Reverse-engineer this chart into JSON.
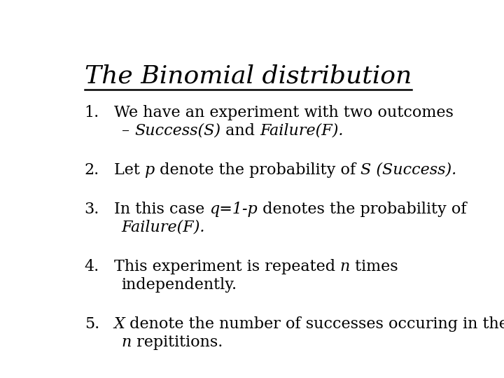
{
  "title": "The Binomial distribution",
  "background_color": "#ffffff",
  "text_color": "#000000",
  "title_fontsize": 26,
  "body_fontsize": 16,
  "items": [
    {
      "number": "1.",
      "lines": [
        [
          {
            "t": "We have an experiment with two outcomes",
            "style": "normal"
          }
        ],
        [
          {
            "t": "– ",
            "style": "normal"
          },
          {
            "t": "Success(S)",
            "style": "italic"
          },
          {
            "t": " and ",
            "style": "normal"
          },
          {
            "t": "Failure(F).",
            "style": "italic"
          }
        ]
      ]
    },
    {
      "number": "2.",
      "lines": [
        [
          {
            "t": "Let ",
            "style": "normal"
          },
          {
            "t": "p",
            "style": "italic"
          },
          {
            "t": " denote the probability of ",
            "style": "normal"
          },
          {
            "t": "S (Success).",
            "style": "italic"
          }
        ]
      ]
    },
    {
      "number": "3.",
      "lines": [
        [
          {
            "t": "In this case ",
            "style": "normal"
          },
          {
            "t": "q=1-p",
            "style": "italic"
          },
          {
            "t": " denotes the probability of",
            "style": "normal"
          }
        ],
        [
          {
            "t": "Failure(F).",
            "style": "italic"
          }
        ]
      ]
    },
    {
      "number": "4.",
      "lines": [
        [
          {
            "t": "This experiment is repeated ",
            "style": "normal"
          },
          {
            "t": "n",
            "style": "italic"
          },
          {
            "t": " times",
            "style": "normal"
          }
        ],
        [
          {
            "t": "independently.",
            "style": "normal"
          }
        ]
      ]
    },
    {
      "number": "5.",
      "lines": [
        [
          {
            "t": "X",
            "style": "italic"
          },
          {
            "t": " denote the number of successes occuring in the",
            "style": "normal"
          }
        ],
        [
          {
            "t": "n",
            "style": "italic"
          },
          {
            "t": " repititions.",
            "style": "normal"
          }
        ]
      ]
    }
  ]
}
